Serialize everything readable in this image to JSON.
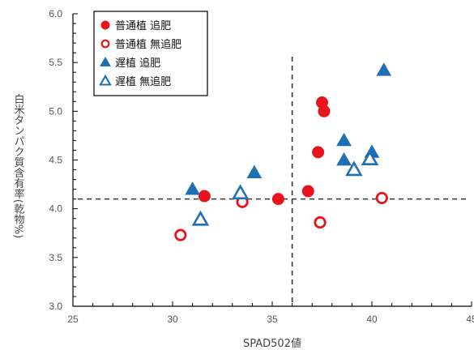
{
  "chart_data": {
    "type": "scatter",
    "xlabel": "SPAD502値",
    "ylabel": "白米タンパク質含有率(乾物%)",
    "xlim": [
      25,
      45
    ],
    "ylim": [
      3.0,
      6.0
    ],
    "x_ticks": [
      "25",
      "30",
      "35",
      "40",
      "45"
    ],
    "y_ticks": [
      "3.0",
      "3.5",
      "4.0",
      "4.5",
      "5.0",
      "5.5",
      "6.0"
    ],
    "grid": false,
    "legend_position": "top-left",
    "reference_lines": {
      "x": 36.0,
      "y": 4.1
    },
    "series": [
      {
        "name": "普通植 追肥",
        "marker": "filled-circle",
        "color": "#e8141c",
        "points": [
          [
            31.6,
            4.13
          ],
          [
            35.3,
            4.1
          ],
          [
            36.8,
            4.18
          ],
          [
            37.3,
            4.58
          ],
          [
            37.5,
            5.09
          ],
          [
            37.6,
            5.0
          ]
        ]
      },
      {
        "name": "普通植 無追肥",
        "marker": "open-circle",
        "color": "#e8141c",
        "points": [
          [
            30.4,
            3.73
          ],
          [
            33.5,
            4.07
          ],
          [
            37.4,
            3.86
          ],
          [
            40.5,
            4.11
          ]
        ]
      },
      {
        "name": "遅植 追肥",
        "marker": "filled-triangle",
        "color": "#1f6fb5",
        "points": [
          [
            31.0,
            4.2
          ],
          [
            34.1,
            4.37
          ],
          [
            38.6,
            4.7
          ],
          [
            38.6,
            4.5
          ],
          [
            40.0,
            4.58
          ],
          [
            40.6,
            5.42
          ]
        ]
      },
      {
        "name": "遅植 無追肥",
        "marker": "open-triangle",
        "color": "#1f6fb5",
        "points": [
          [
            31.4,
            3.89
          ],
          [
            33.4,
            4.16
          ],
          [
            39.1,
            4.4
          ],
          [
            39.9,
            4.51
          ]
        ]
      }
    ]
  }
}
